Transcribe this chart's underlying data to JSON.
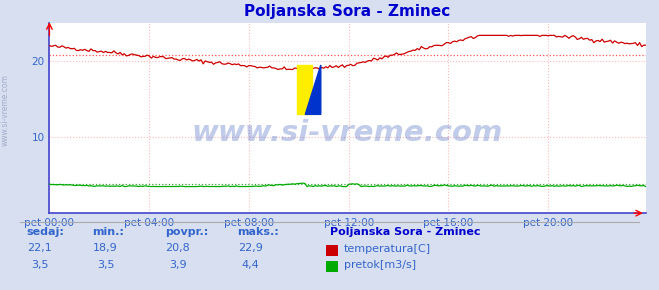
{
  "title": "Poljanska Sora - Zminec",
  "title_color": "#0000cc",
  "bg_color": "#d8dff0",
  "plot_bg_color": "#ffffff",
  "grid_color": "#ffbbbb",
  "grid_style": "dotted",
  "border_color_left": "#4444cc",
  "border_color_bottom": "#4444cc",
  "xlabel_color": "#3366cc",
  "xticklabels": [
    "pet 00:00",
    "pet 04:00",
    "pet 08:00",
    "pet 12:00",
    "pet 16:00",
    "pet 20:00"
  ],
  "xtick_positions": [
    0,
    48,
    96,
    144,
    192,
    240
  ],
  "total_points": 288,
  "ylim": [
    0,
    25
  ],
  "yticks": [
    10,
    20
  ],
  "temp_avg": 20.8,
  "temp_min": 18.9,
  "temp_max": 22.9,
  "temp_current": 22.1,
  "flow_avg": 3.9,
  "flow_min": 3.5,
  "flow_max": 4.4,
  "flow_current": 3.5,
  "watermark": "www.si-vreme.com",
  "watermark_color": "#3355bb",
  "watermark_alpha": 0.3,
  "temp_line_color": "#cc0000",
  "flow_line_color": "#00aa00",
  "avg_line_color_temp": "#ff5555",
  "avg_line_color_flow": "#33aa33",
  "sidebar_text": "www.si-vreme.com",
  "sidebar_color": "#8899bb",
  "legend_title": "Poljanska Sora - Zminec",
  "legend_title_color": "#0000cc",
  "legend_temp_label": "temperatura[C]",
  "legend_flow_label": "pretok[m3/s]",
  "stats_color": "#3366cc",
  "stats_headers": [
    "sedaj:",
    "min.:",
    "povpr.:",
    "maks.:"
  ],
  "stats_temp": [
    "22,1",
    "18,9",
    "20,8",
    "22,9"
  ],
  "stats_flow": [
    "3,5",
    "3,5",
    "3,9",
    "4,4"
  ]
}
